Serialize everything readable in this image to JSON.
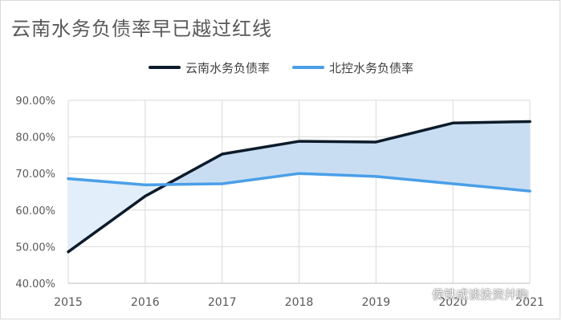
{
  "chart_data": {
    "type": "line",
    "title": "云南水务负债率早已越过红线",
    "x": [
      "2015",
      "2016",
      "2017",
      "2018",
      "2019",
      "2020",
      "2021"
    ],
    "series": [
      {
        "name": "云南水务负债率",
        "color": "#0d1b2a",
        "values": [
          48.6,
          63.8,
          75.3,
          78.8,
          78.6,
          83.8,
          84.2
        ]
      },
      {
        "name": "北控水务负债率",
        "color": "#4a9fe8",
        "values": [
          68.6,
          66.9,
          67.2,
          70.0,
          69.2,
          67.2,
          65.2
        ]
      }
    ],
    "yticks": [
      "40.00%",
      "50.00%",
      "60.00%",
      "70.00%",
      "80.00%",
      "90.00%"
    ],
    "ylim": [
      40,
      90
    ],
    "fill_between": {
      "fill_above": "#c9ddf2",
      "fill_below": "#e2eef9"
    },
    "grid": true,
    "legend_position": "top"
  },
  "watermark": {
    "text": "侯铁成谈投资并购",
    "icon": "wechat-icon"
  }
}
